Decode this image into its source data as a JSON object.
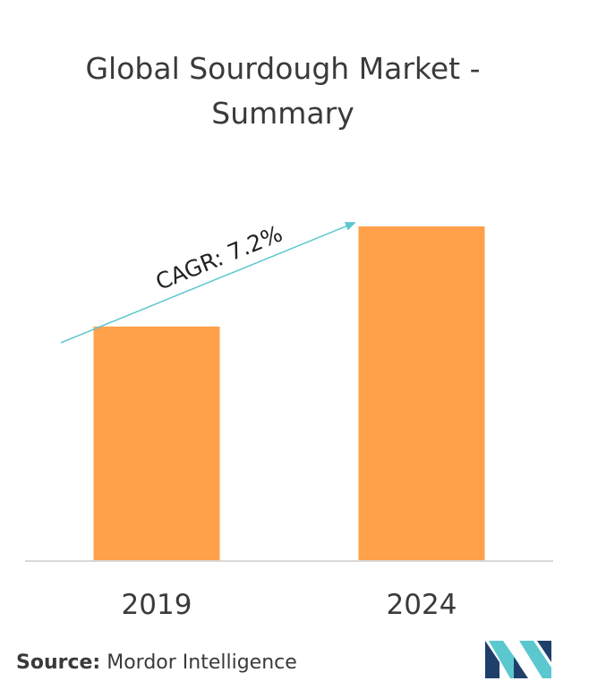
{
  "header": {
    "title_line1": "Global Sourdough Market -",
    "title_line2": "Summary"
  },
  "chart_data": {
    "type": "bar",
    "title": "Global Sourdough Market - Summary",
    "categories": [
      "2019",
      "2024"
    ],
    "values": [
      0.7,
      1.0
    ],
    "ylim": [
      0,
      1.0
    ],
    "bar_color": "#ffa04a",
    "axis_color": "#cccccc",
    "grid": false,
    "annotation": {
      "text": "CAGR: 7.2%",
      "arrow_color": "#5bc8cf"
    }
  },
  "footer": {
    "source_label": "Source:",
    "source_text": " Mordor Intelligence"
  },
  "logo": {
    "icon": "mordor-intelligence-logo",
    "colors": [
      "#1f3f6b",
      "#5bc8cf"
    ]
  }
}
